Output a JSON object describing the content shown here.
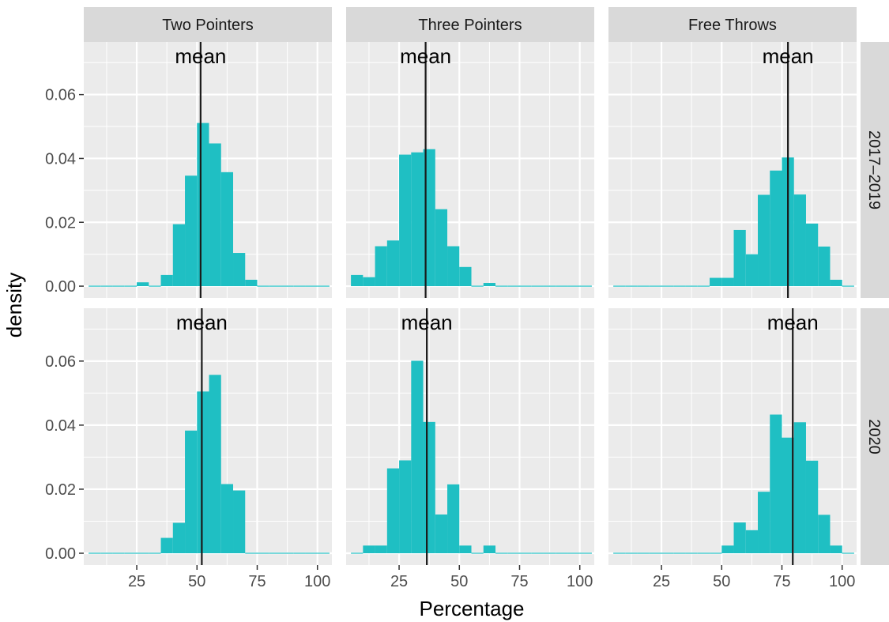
{
  "chart_data": {
    "type": "histogram",
    "xlabel": "Percentage",
    "ylabel": "density",
    "xlim": [
      3,
      106
    ],
    "ylim": [
      -0.0037,
      0.0765
    ],
    "x_ticks": [
      25,
      50,
      75,
      100
    ],
    "y_ticks": [
      0.0,
      0.02,
      0.04,
      0.06
    ],
    "y_tick_labels": [
      "0.00",
      "0.02",
      "0.04",
      "0.06"
    ],
    "bin_width": 5,
    "bin_start": 5,
    "column_facets": [
      "Two Pointers",
      "Three Pointers",
      "Free Throws"
    ],
    "row_facets": [
      "2017–2019",
      "2020"
    ],
    "fill_color": "#1fbfc3",
    "mean_line_color": "#1a1a1a",
    "mean_label": "mean",
    "panels": [
      {
        "row": 0,
        "col": 0,
        "mean": 51.5,
        "bins": [
          [
            5,
            0
          ],
          [
            10,
            0
          ],
          [
            15,
            0
          ],
          [
            20,
            0
          ],
          [
            25,
            0.0012
          ],
          [
            30,
            0
          ],
          [
            35,
            0.0035
          ],
          [
            40,
            0.0194
          ],
          [
            45,
            0.0346
          ],
          [
            50,
            0.0511
          ],
          [
            55,
            0.0447
          ],
          [
            60,
            0.0357
          ],
          [
            65,
            0.0104
          ],
          [
            70,
            0.002
          ],
          [
            75,
            0
          ],
          [
            80,
            0
          ],
          [
            85,
            0
          ],
          [
            90,
            0
          ],
          [
            95,
            0
          ],
          [
            100,
            0
          ]
        ]
      },
      {
        "row": 0,
        "col": 1,
        "mean": 36,
        "bins": [
          [
            5,
            0.0035
          ],
          [
            10,
            0.0028
          ],
          [
            15,
            0.0125
          ],
          [
            20,
            0.0143
          ],
          [
            25,
            0.0412
          ],
          [
            30,
            0.0419
          ],
          [
            35,
            0.0429
          ],
          [
            40,
            0.0241
          ],
          [
            45,
            0.0125
          ],
          [
            50,
            0.006
          ],
          [
            55,
            0
          ],
          [
            60,
            0.001
          ],
          [
            65,
            0
          ],
          [
            70,
            0
          ],
          [
            75,
            0
          ],
          [
            80,
            0
          ],
          [
            85,
            0
          ],
          [
            90,
            0
          ],
          [
            95,
            0
          ],
          [
            100,
            0
          ]
        ]
      },
      {
        "row": 0,
        "col": 2,
        "mean": 77.5,
        "bins": [
          [
            5,
            0
          ],
          [
            10,
            0
          ],
          [
            15,
            0
          ],
          [
            20,
            0
          ],
          [
            25,
            0
          ],
          [
            30,
            0
          ],
          [
            35,
            0
          ],
          [
            40,
            0
          ],
          [
            45,
            0.0026
          ],
          [
            50,
            0.0026
          ],
          [
            55,
            0.0176
          ],
          [
            60,
            0.01
          ],
          [
            65,
            0.0286
          ],
          [
            70,
            0.0362
          ],
          [
            75,
            0.0403
          ],
          [
            80,
            0.0287
          ],
          [
            85,
            0.0196
          ],
          [
            90,
            0.0124
          ],
          [
            95,
            0.002
          ],
          [
            100,
            0
          ]
        ]
      },
      {
        "row": 1,
        "col": 0,
        "mean": 52,
        "bins": [
          [
            5,
            0
          ],
          [
            10,
            0
          ],
          [
            15,
            0
          ],
          [
            20,
            0
          ],
          [
            25,
            0
          ],
          [
            30,
            0
          ],
          [
            35,
            0.0048
          ],
          [
            40,
            0.0095
          ],
          [
            45,
            0.0383
          ],
          [
            50,
            0.0505
          ],
          [
            55,
            0.0557
          ],
          [
            60,
            0.0216
          ],
          [
            65,
            0.0196
          ],
          [
            70,
            0
          ],
          [
            75,
            0
          ],
          [
            80,
            0
          ],
          [
            85,
            0
          ],
          [
            90,
            0
          ],
          [
            95,
            0
          ],
          [
            100,
            0
          ]
        ]
      },
      {
        "row": 1,
        "col": 1,
        "mean": 36.5,
        "bins": [
          [
            5,
            0
          ],
          [
            10,
            0.0024
          ],
          [
            15,
            0.0024
          ],
          [
            20,
            0.0265
          ],
          [
            25,
            0.029
          ],
          [
            30,
            0.0601
          ],
          [
            35,
            0.041
          ],
          [
            40,
            0.0121
          ],
          [
            45,
            0.0215
          ],
          [
            50,
            0.0024
          ],
          [
            55,
            0
          ],
          [
            60,
            0.0024
          ],
          [
            65,
            0
          ],
          [
            70,
            0
          ],
          [
            75,
            0
          ],
          [
            80,
            0
          ],
          [
            85,
            0
          ],
          [
            90,
            0
          ],
          [
            95,
            0
          ],
          [
            100,
            0
          ]
        ]
      },
      {
        "row": 1,
        "col": 2,
        "mean": 79.5,
        "bins": [
          [
            5,
            0
          ],
          [
            10,
            0
          ],
          [
            15,
            0
          ],
          [
            20,
            0
          ],
          [
            25,
            0
          ],
          [
            30,
            0
          ],
          [
            35,
            0
          ],
          [
            40,
            0
          ],
          [
            45,
            0
          ],
          [
            50,
            0.0024
          ],
          [
            55,
            0.0096
          ],
          [
            60,
            0.0072
          ],
          [
            65,
            0.0192
          ],
          [
            70,
            0.0433
          ],
          [
            75,
            0.0361
          ],
          [
            80,
            0.0409
          ],
          [
            85,
            0.0289
          ],
          [
            90,
            0.012
          ],
          [
            95,
            0.0024
          ],
          [
            100,
            0
          ]
        ]
      }
    ]
  }
}
